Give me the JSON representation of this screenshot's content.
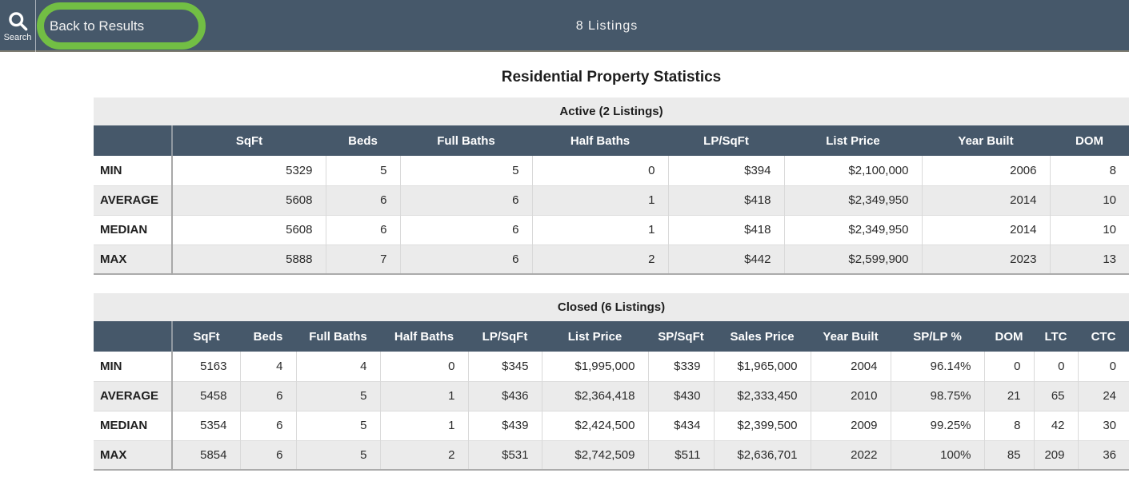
{
  "header": {
    "search_icon": "magnifier",
    "search_label": "Search",
    "back_button": "Back to Results",
    "listings_count": "8 Listings"
  },
  "page_title": "Residential Property Statistics",
  "colors": {
    "topbar_bg": "#46586A",
    "table_header_bg": "#46586A",
    "section_title_bg": "#EBEBEB",
    "row_alt_bg": "#EBEBEB",
    "annotation_highlight": "#72BE44",
    "text_dark": "#1E1E1E",
    "text_light": "#FFFFFF"
  },
  "tables": [
    {
      "title": "Active (2 Listings)",
      "columns": [
        "",
        "SqFt",
        "Beds",
        "Full Baths",
        "Half Baths",
        "LP/SqFt",
        "List Price",
        "Year Built",
        "DOM"
      ],
      "rows": [
        {
          "label": "MIN",
          "values": [
            "5329",
            "5",
            "5",
            "0",
            "$394",
            "$2,100,000",
            "2006",
            "8"
          ]
        },
        {
          "label": "AVERAGE",
          "values": [
            "5608",
            "6",
            "6",
            "1",
            "$418",
            "$2,349,950",
            "2014",
            "10"
          ]
        },
        {
          "label": "MEDIAN",
          "values": [
            "5608",
            "6",
            "6",
            "1",
            "$418",
            "$2,349,950",
            "2014",
            "10"
          ]
        },
        {
          "label": "MAX",
          "values": [
            "5888",
            "7",
            "6",
            "2",
            "$442",
            "$2,599,900",
            "2023",
            "13"
          ]
        }
      ]
    },
    {
      "title": "Closed (6 Listings)",
      "columns": [
        "",
        "SqFt",
        "Beds",
        "Full Baths",
        "Half Baths",
        "LP/SqFt",
        "List Price",
        "SP/SqFt",
        "Sales Price",
        "Year Built",
        "SP/LP %",
        "DOM",
        "LTC",
        "CTC"
      ],
      "rows": [
        {
          "label": "MIN",
          "values": [
            "5163",
            "4",
            "4",
            "0",
            "$345",
            "$1,995,000",
            "$339",
            "$1,965,000",
            "2004",
            "96.14%",
            "0",
            "0",
            "0"
          ]
        },
        {
          "label": "AVERAGE",
          "values": [
            "5458",
            "6",
            "5",
            "1",
            "$436",
            "$2,364,418",
            "$430",
            "$2,333,450",
            "2010",
            "98.75%",
            "21",
            "65",
            "24"
          ]
        },
        {
          "label": "MEDIAN",
          "values": [
            "5354",
            "6",
            "5",
            "1",
            "$439",
            "$2,424,500",
            "$434",
            "$2,399,500",
            "2009",
            "99.25%",
            "8",
            "42",
            "30"
          ]
        },
        {
          "label": "MAX",
          "values": [
            "5854",
            "6",
            "5",
            "2",
            "$531",
            "$2,742,509",
            "$511",
            "$2,636,701",
            "2022",
            "100%",
            "85",
            "209",
            "36"
          ]
        }
      ]
    }
  ]
}
